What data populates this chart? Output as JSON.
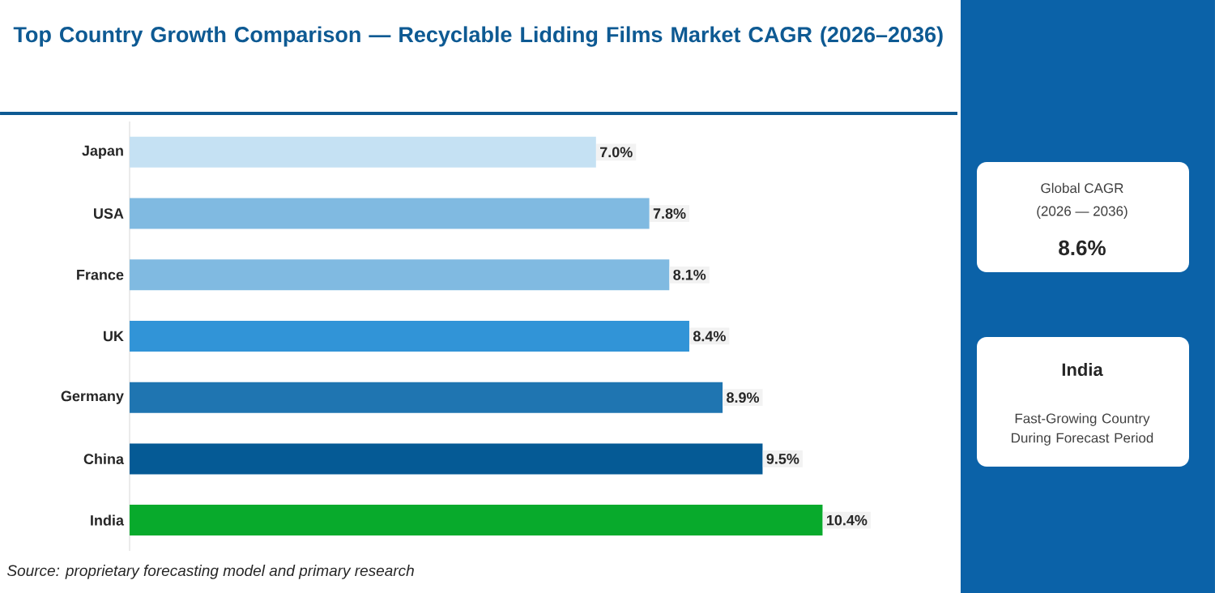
{
  "chart_data": {
    "type": "bar",
    "orientation": "horizontal",
    "title": "Top Country Growth Comparison — Recyclable Lidding Films Market CAGR (2026–2036)",
    "categories": [
      "Japan",
      "USA",
      "France",
      "UK",
      "Germany",
      "China",
      "India"
    ],
    "values": [
      7.0,
      7.8,
      8.1,
      8.4,
      8.9,
      9.5,
      10.4
    ],
    "colors": [
      "#c5e1f3",
      "#80bae1",
      "#80bae1",
      "#3194d7",
      "#1f75b1",
      "#055a95",
      "#08aa2c"
    ],
    "value_labels": [
      "7.0%",
      "7.8%",
      "8.1%",
      "8.4%",
      "8.9%",
      "9.5%",
      "10.4%"
    ],
    "xlim": [
      0,
      12.4
    ],
    "tick_labels": "y",
    "annotations": [
      "Global CAGR",
      "(2026 — 2036)",
      "8.6%",
      "India",
      "Fast-Growing Country During Forecast Period",
      "Source: proprietary forecasting model and primary research"
    ]
  }
}
